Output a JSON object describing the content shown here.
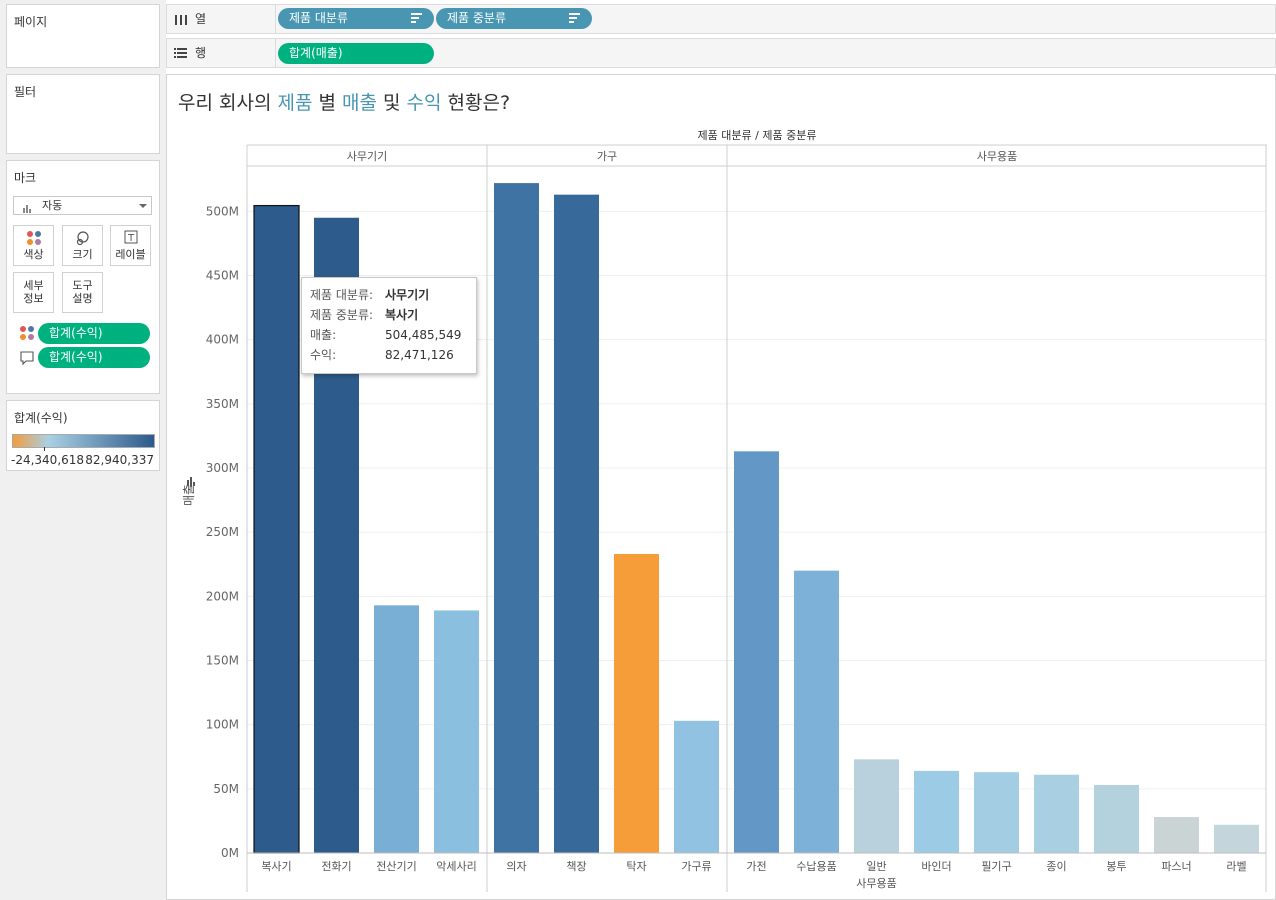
{
  "left_panel": {
    "pages_title": "페이지",
    "filters_title": "필터",
    "marks": {
      "title": "마크",
      "mark_type": "자동",
      "buttons": [
        {
          "label": "색상",
          "icon": "color-dots-icon"
        },
        {
          "label": "크기",
          "icon": "size-circle-icon"
        },
        {
          "label": "레이블",
          "icon": "text-label-icon"
        },
        {
          "label_line1": "세부",
          "label_line2": "정보"
        },
        {
          "label_line1": "도구",
          "label_line2": "설명"
        }
      ],
      "fields": [
        {
          "label": "합계(수익)",
          "icon": "color-dots-icon"
        },
        {
          "label": "합계(수익)",
          "icon": "tooltip-icon"
        }
      ]
    },
    "legend": {
      "title": "합계(수익)",
      "min_label": "-24,340,618",
      "max_label": "82,940,337",
      "colors": [
        "#f59c3c",
        "#a9d0e4",
        "#2c5a8c"
      ]
    }
  },
  "shelves": {
    "columns": {
      "label": "열",
      "pills": [
        "제품 대분류",
        "제품 중분류"
      ]
    },
    "rows": {
      "label": "행",
      "pills": [
        "합계(매출)"
      ]
    }
  },
  "title": {
    "part1": "우리 회사의 ",
    "word1": "제품",
    "part2": " 별 ",
    "word2": "매출",
    "part3": " 및 ",
    "word3": "수익",
    "part4": " 현황은?"
  },
  "tooltip": {
    "rows": [
      {
        "key": "제품 대분류:",
        "value": "사무기기",
        "bold": true
      },
      {
        "key": "제품 중분류:",
        "value": "복사기",
        "bold": true
      },
      {
        "key": "매출:",
        "value": "504,485,549",
        "bold": false
      },
      {
        "key": "수익:",
        "value": "82,471,126",
        "bold": false
      }
    ]
  },
  "chart_data": {
    "type": "bar",
    "title": "",
    "header_label": "제품 대분류 / 제품 중분류",
    "ylabel": "매출",
    "ylim": [
      0,
      540000000
    ],
    "y_ticks": [
      0,
      50000000,
      100000000,
      150000000,
      200000000,
      250000000,
      300000000,
      350000000,
      400000000,
      450000000,
      500000000
    ],
    "y_tick_labels": [
      "0M",
      "50M",
      "100M",
      "150M",
      "200M",
      "250M",
      "300M",
      "350M",
      "400M",
      "450M",
      "500M"
    ],
    "groups": [
      {
        "name": "사무기기",
        "bars": [
          {
            "label": "복사기",
            "value": 504485549,
            "color": "#2d5b8b",
            "selected": true
          },
          {
            "label": "전화기",
            "value": 495000000,
            "color": "#2d5b8b"
          },
          {
            "label": "전산기기",
            "value": 193000000,
            "color": "#79aed5"
          },
          {
            "label": "악세사리",
            "value": 189000000,
            "color": "#8abfdf"
          }
        ]
      },
      {
        "name": "가구",
        "bars": [
          {
            "label": "의자",
            "value": 522000000,
            "color": "#3f73a3"
          },
          {
            "label": "책장",
            "value": 513000000,
            "color": "#376a9b"
          },
          {
            "label": "탁자",
            "value": 233000000,
            "color": "#f69d3a"
          },
          {
            "label": "가구류",
            "value": 103000000,
            "color": "#91c2e1"
          }
        ]
      },
      {
        "name": "사무용품",
        "bars": [
          {
            "label": "가전",
            "value": 313000000,
            "color": "#6398c6"
          },
          {
            "label": "수납용품",
            "value": 220000000,
            "color": "#7eb1d7"
          },
          {
            "label": "일반 사무용품",
            "label_line1": "일반",
            "label_line2": "사무용품",
            "value": 73000000,
            "color": "#b9d1dc"
          },
          {
            "label": "바인더",
            "value": 64000000,
            "color": "#9ccbe5"
          },
          {
            "label": "필기구",
            "value": 63000000,
            "color": "#a3cde3"
          },
          {
            "label": "종이",
            "value": 61000000,
            "color": "#a8cfe2"
          },
          {
            "label": "봉투",
            "value": 53000000,
            "color": "#b4d1de"
          },
          {
            "label": "파스너",
            "value": 28000000,
            "color": "#cbd4d4"
          },
          {
            "label": "라벨",
            "value": 22000000,
            "color": "#c4d6dc"
          }
        ]
      }
    ]
  }
}
